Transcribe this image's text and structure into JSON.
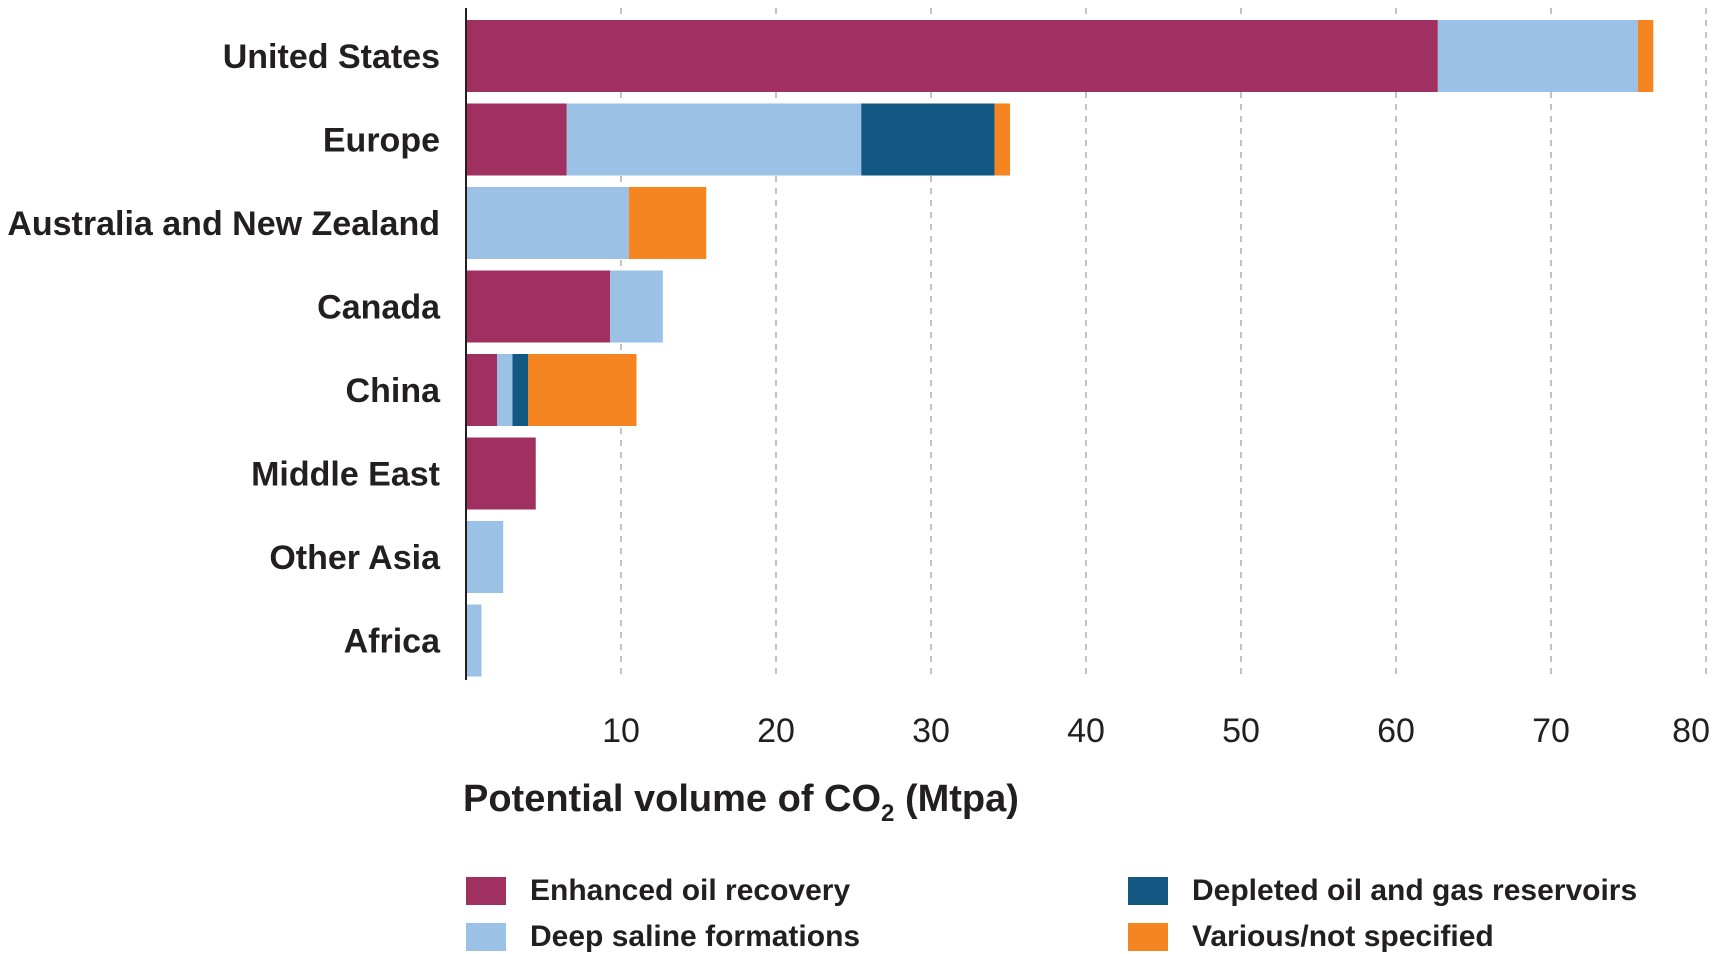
{
  "chart_data": {
    "type": "bar",
    "orientation": "horizontal",
    "stacked": true,
    "categories": [
      "United States",
      "Europe",
      "Australia and New Zealand",
      "Canada",
      "China",
      "Middle East",
      "Other Asia",
      "Africa"
    ],
    "series": [
      {
        "name": "Enhanced oil recovery",
        "color": "#a0305f",
        "values": [
          62.7,
          6.5,
          0,
          9.3,
          2.0,
          4.5,
          0,
          0
        ]
      },
      {
        "name": "Deep saline formations",
        "color": "#9bc2e6",
        "values": [
          12.9,
          19.0,
          10.5,
          3.4,
          1.0,
          0,
          2.4,
          1.0
        ]
      },
      {
        "name": "Depleted oil and gas reservoirs",
        "color": "#135783",
        "values": [
          0,
          8.6,
          0,
          0,
          1.0,
          0,
          0,
          0
        ]
      },
      {
        "name": "Various/not specified",
        "color": "#f58520",
        "values": [
          1.0,
          1.0,
          5.0,
          0,
          7.0,
          0,
          0,
          0
        ]
      }
    ],
    "xlim": [
      0,
      80
    ],
    "xticks": [
      "10",
      "20",
      "30",
      "40",
      "50",
      "60",
      "70",
      "80"
    ],
    "xlabel": {
      "main": "Potential volume of CO",
      "sub": "2",
      "unit": " (Mtpa)"
    },
    "grid": "vertical dashed",
    "legend_position": "bottom"
  }
}
